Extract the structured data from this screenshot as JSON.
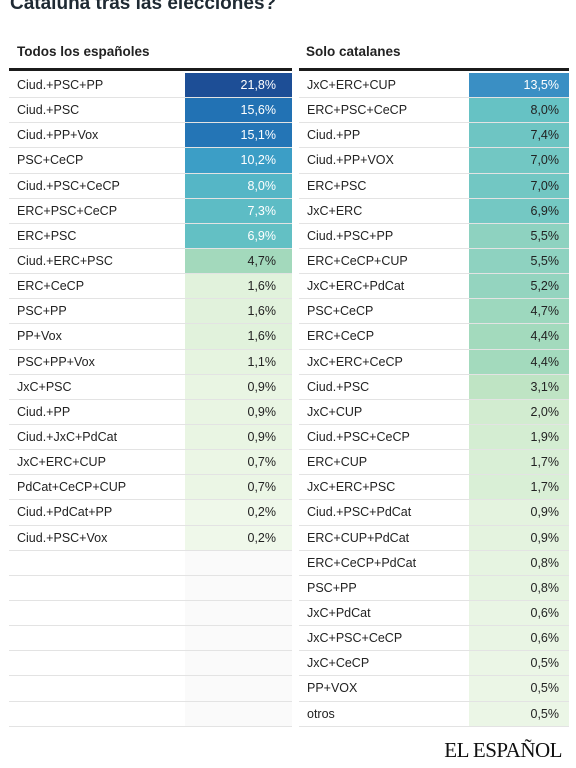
{
  "title": "Cataluña tras las elecciones?",
  "left": {
    "header": "Todos los españoles",
    "rows": [
      {
        "name": "Ciud.+PSC+PP",
        "value": "21,8%",
        "color": "#1d4e96"
      },
      {
        "name": "Ciud.+PSC",
        "value": "15,6%",
        "color": "#2272b4"
      },
      {
        "name": "Ciud.+PP+Vox",
        "value": "15,1%",
        "color": "#2475b6"
      },
      {
        "name": "PSC+CeCP",
        "value": "10,2%",
        "color": "#3c9ec6"
      },
      {
        "name": "Ciud.+PSC+CeCP",
        "value": "8,0%",
        "color": "#55b6c6"
      },
      {
        "name": "ERC+PSC+CeCP",
        "value": "7,3%",
        "color": "#5dbcc5"
      },
      {
        "name": "ERC+PSC",
        "value": "6,9%",
        "color": "#63c0c4"
      },
      {
        "name": "Ciud.+ERC+PSC",
        "value": "4,7%",
        "color": "#a3d9bc"
      },
      {
        "name": "ERC+CeCP",
        "value": "1,6%",
        "color": "#e1f2dc"
      },
      {
        "name": "PSC+PP",
        "value": "1,6%",
        "color": "#e1f2dc"
      },
      {
        "name": "PP+Vox",
        "value": "1,6%",
        "color": "#e1f2dc"
      },
      {
        "name": "PSC+PP+Vox",
        "value": "1,1%",
        "color": "#e6f4e0"
      },
      {
        "name": "JxC+PSC",
        "value": "0,9%",
        "color": "#e9f5e3"
      },
      {
        "name": "Ciud.+PP",
        "value": "0,9%",
        "color": "#e9f5e3"
      },
      {
        "name": "Ciud.+JxC+PdCat",
        "value": "0,9%",
        "color": "#e9f5e3"
      },
      {
        "name": "JxC+ERC+CUP",
        "value": "0,7%",
        "color": "#ebf6e5"
      },
      {
        "name": "PdCat+CeCP+CUP",
        "value": "0,7%",
        "color": "#ebf6e5"
      },
      {
        "name": "Ciud.+PdCat+PP",
        "value": "0,2%",
        "color": "#eff8ea"
      },
      {
        "name": "Ciud.+PSC+Vox",
        "value": "0,2%",
        "color": "#eff8ea"
      }
    ]
  },
  "right": {
    "header": "Solo catalanes",
    "rows": [
      {
        "name": "JxC+ERC+CUP",
        "value": "13,5%",
        "color": "#3a8fc4"
      },
      {
        "name": "ERC+PSC+CeCP",
        "value": "8,0%",
        "color": "#66c2c4"
      },
      {
        "name": "Ciud.+PP",
        "value": "7,4%",
        "color": "#6ec5c3"
      },
      {
        "name": "Ciud.+PP+VOX",
        "value": "7,0%",
        "color": "#72c7c3"
      },
      {
        "name": "ERC+PSC",
        "value": "7,0%",
        "color": "#72c7c3"
      },
      {
        "name": "JxC+ERC",
        "value": "6,9%",
        "color": "#74c8c3"
      },
      {
        "name": "Ciud.+PSC+PP",
        "value": "5,5%",
        "color": "#8ed2c0"
      },
      {
        "name": "ERC+CeCP+CUP",
        "value": "5,5%",
        "color": "#8ed2c0"
      },
      {
        "name": "JxC+ERC+PdCat",
        "value": "5,2%",
        "color": "#94d4bf"
      },
      {
        "name": "PSC+CeCP",
        "value": "4,7%",
        "color": "#9dd8be"
      },
      {
        "name": "ERC+CeCP",
        "value": "4,4%",
        "color": "#a3dabd"
      },
      {
        "name": "JxC+ERC+CeCP",
        "value": "4,4%",
        "color": "#a3dabd"
      },
      {
        "name": "Ciud.+PSC",
        "value": "3,1%",
        "color": "#bfe4c4"
      },
      {
        "name": "JxC+CUP",
        "value": "2,0%",
        "color": "#d2ecd0"
      },
      {
        "name": "Ciud.+PSC+CeCP",
        "value": "1,9%",
        "color": "#d4edd2"
      },
      {
        "name": "ERC+CUP",
        "value": "1,7%",
        "color": "#d9efd6"
      },
      {
        "name": "JxC+ERC+PSC",
        "value": "1,7%",
        "color": "#d9efd6"
      },
      {
        "name": "Ciud.+PSC+PdCat",
        "value": "0,9%",
        "color": "#e4f3df"
      },
      {
        "name": "ERC+CUP+PdCat",
        "value": "0,9%",
        "color": "#e4f3df"
      },
      {
        "name": "ERC+CeCP+PdCat",
        "value": "0,8%",
        "color": "#e6f4e1"
      },
      {
        "name": "PSC+PP",
        "value": "0,8%",
        "color": "#e6f4e1"
      },
      {
        "name": "JxC+PdCat",
        "value": "0,6%",
        "color": "#e9f5e4"
      },
      {
        "name": "JxC+PSC+CeCP",
        "value": "0,6%",
        "color": "#e9f5e4"
      },
      {
        "name": "JxC+CeCP",
        "value": "0,5%",
        "color": "#ebf6e6"
      },
      {
        "name": "PP+VOX",
        "value": "0,5%",
        "color": "#ebf6e6"
      },
      {
        "name": "otros",
        "value": "0,5%",
        "color": "#ebf6e6"
      }
    ]
  },
  "brand": "EL ESPAÑOL"
}
